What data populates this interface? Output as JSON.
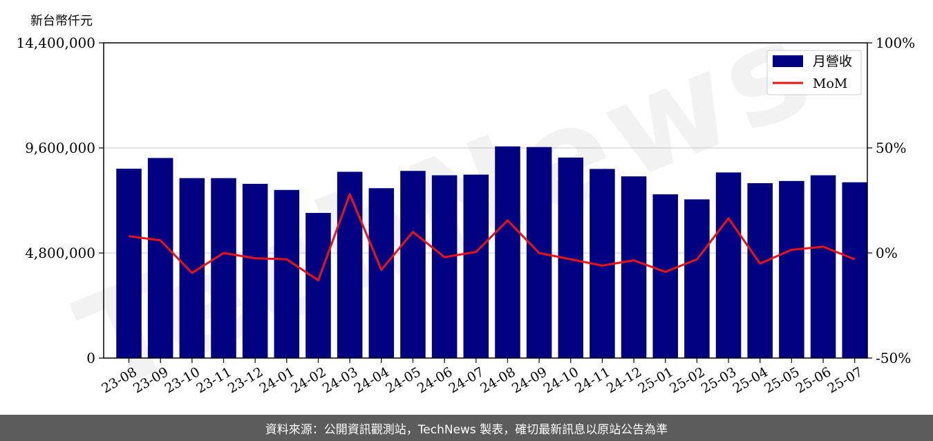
{
  "chart_data": {
    "type": "bar",
    "y_unit_label": "新台幣仟元",
    "categories": [
      "23-08",
      "23-09",
      "23-10",
      "23-11",
      "23-12",
      "24-01",
      "24-02",
      "24-03",
      "24-04",
      "24-05",
      "24-06",
      "24-07",
      "24-08",
      "24-09",
      "24-10",
      "24-11",
      "24-12",
      "25-01",
      "25-02",
      "25-03",
      "25-04",
      "25-05",
      "25-06",
      "25-07"
    ],
    "series": [
      {
        "name": "月營收",
        "kind": "bar",
        "axis": "left",
        "color": "#000080",
        "values": [
          8650000,
          9140000,
          8220000,
          8220000,
          7960000,
          7680000,
          6630000,
          8510000,
          7760000,
          8550000,
          8350000,
          8380000,
          9670000,
          9640000,
          9160000,
          8640000,
          8300000,
          7480000,
          7250000,
          8480000,
          7990000,
          8090000,
          8350000,
          8030000
        ]
      },
      {
        "name": "MoM",
        "kind": "line",
        "axis": "right",
        "color": "#ee1111",
        "values": [
          8.0,
          6.0,
          -9.5,
          0.0,
          -2.5,
          -3.0,
          -13.0,
          28.0,
          -8.0,
          10.0,
          -2.0,
          0.5,
          15.5,
          0.0,
          -3.0,
          -6.0,
          -3.5,
          -9.0,
          -3.0,
          16.5,
          -5.0,
          1.5,
          3.0,
          -3.0
        ]
      }
    ],
    "ylim_left": [
      0,
      14400000
    ],
    "yticks_left": [
      "0",
      "4,800,000",
      "9,600,000",
      "14,400,000"
    ],
    "ylim_right": [
      -50,
      100
    ],
    "yticks_right": [
      "-50%",
      "0%",
      "50%",
      "100%"
    ],
    "legend": {
      "position": "top-right",
      "items": [
        "月營收",
        "MoM"
      ]
    },
    "grid": "horizontal",
    "watermark": "TechNews"
  },
  "footer": {
    "text": "資料來源：公開資訊觀測站，TechNews 製表，確切最新訊息以原站公告為準"
  }
}
